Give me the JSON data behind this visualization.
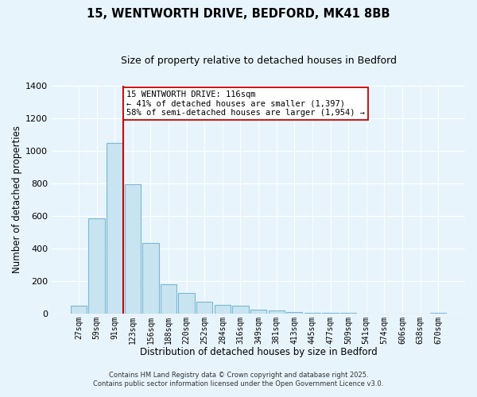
{
  "title": "15, WENTWORTH DRIVE, BEDFORD, MK41 8BB",
  "subtitle": "Size of property relative to detached houses in Bedford",
  "xlabel": "Distribution of detached houses by size in Bedford",
  "ylabel": "Number of detached properties",
  "bar_labels": [
    "27sqm",
    "59sqm",
    "91sqm",
    "123sqm",
    "156sqm",
    "188sqm",
    "220sqm",
    "252sqm",
    "284sqm",
    "316sqm",
    "349sqm",
    "381sqm",
    "413sqm",
    "445sqm",
    "477sqm",
    "509sqm",
    "541sqm",
    "574sqm",
    "606sqm",
    "638sqm",
    "670sqm"
  ],
  "bar_values": [
    50,
    585,
    1050,
    795,
    435,
    180,
    125,
    70,
    55,
    50,
    25,
    20,
    10,
    5,
    3,
    2,
    1,
    0,
    0,
    0,
    5
  ],
  "bar_color": "#c8e4f0",
  "bar_edge_color": "#7ab8d4",
  "vline_index": 2.5,
  "vline_color": "#cc0000",
  "annotation_text": "15 WENTWORTH DRIVE: 116sqm\n← 41% of detached houses are smaller (1,397)\n58% of semi-detached houses are larger (1,954) →",
  "annotation_box_color": "#ffffff",
  "annotation_box_edge": "#cc0000",
  "ylim": [
    0,
    1400
  ],
  "yticks": [
    0,
    200,
    400,
    600,
    800,
    1000,
    1200,
    1400
  ],
  "footer_line1": "Contains HM Land Registry data © Crown copyright and database right 2025.",
  "footer_line2": "Contains public sector information licensed under the Open Government Licence v3.0.",
  "bg_color": "#e8f4fc",
  "grid_color": "#ffffff",
  "title_fontsize": 10.5,
  "subtitle_fontsize": 9
}
